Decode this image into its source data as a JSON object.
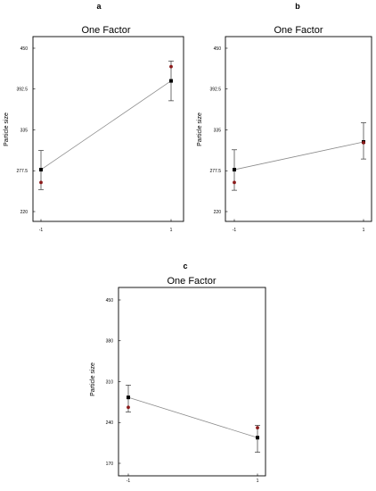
{
  "chart_data": [
    {
      "panel": "a",
      "type": "line",
      "title": "One Factor",
      "xlabel": "",
      "ylabel": "Particle size",
      "categories": [
        "-1",
        "1"
      ],
      "yticks": [
        "220",
        "277.5",
        "335",
        "392.5",
        "450"
      ],
      "ylim": [
        220,
        450
      ],
      "series": [
        {
          "mean": [
            279,
            404
          ],
          "actual": [
            261,
            424
          ],
          "lower": [
            251,
            376
          ],
          "upper": [
            306,
            432
          ]
        }
      ]
    },
    {
      "panel": "b",
      "type": "line",
      "title": "One Factor",
      "xlabel": "",
      "ylabel": "Particle size",
      "categories": [
        "-1",
        "1"
      ],
      "yticks": [
        "220",
        "277.5",
        "335",
        "392.5",
        "450"
      ],
      "ylim": [
        220,
        450
      ],
      "series": [
        {
          "mean": [
            279,
            318
          ],
          "actual": [
            261,
            317
          ],
          "lower": [
            250,
            294
          ],
          "upper": [
            307,
            345
          ]
        }
      ]
    },
    {
      "panel": "c",
      "type": "line",
      "title": "One Factor",
      "xlabel": "",
      "ylabel": "Particle size",
      "categories": [
        "-1",
        "1"
      ],
      "yticks": [
        "170",
        "240",
        "310",
        "380",
        "450"
      ],
      "ylim": [
        170,
        450
      ],
      "series": [
        {
          "mean": [
            283,
            214
          ],
          "actual": [
            266,
            231
          ],
          "lower": [
            258,
            189
          ],
          "upper": [
            304,
            235
          ]
        }
      ]
    }
  ]
}
